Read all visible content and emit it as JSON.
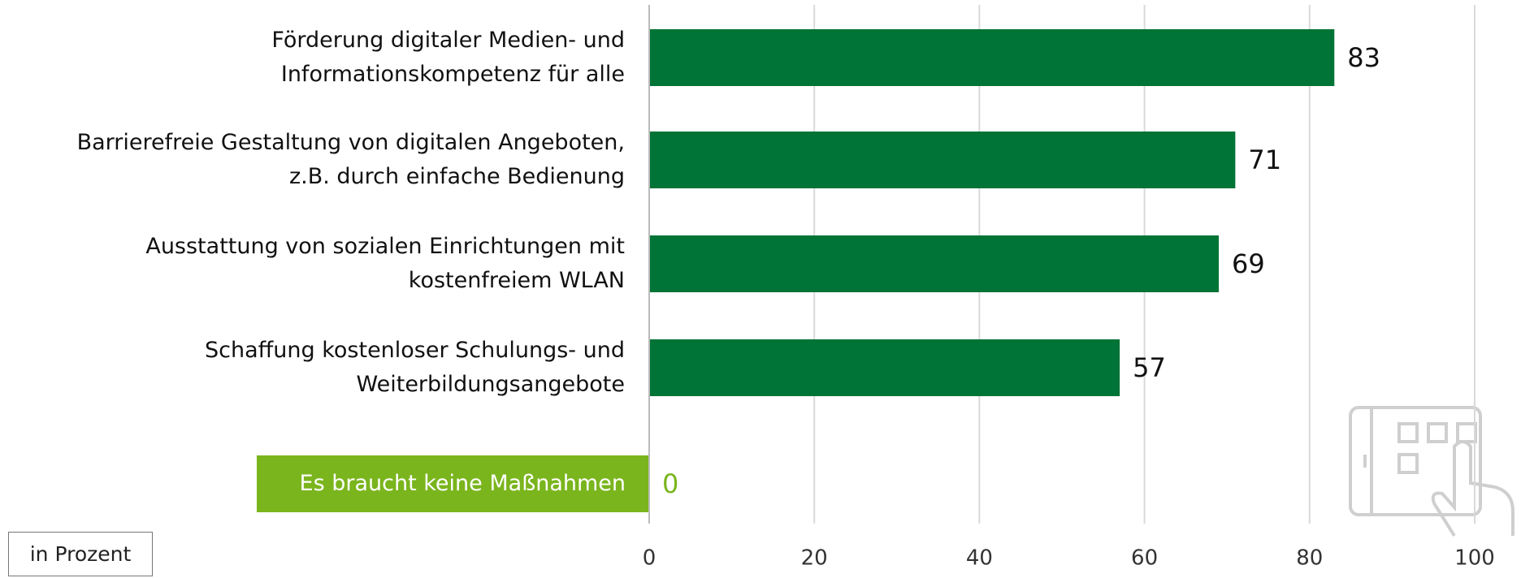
{
  "chart_data": {
    "type": "barh",
    "categories": [
      "Förderung digitaler Medien- und\nInformationskompetenz für alle",
      "Barrierefreie Gestaltung von digitalen Angeboten,\nz.B. durch einfache Bedienung",
      "Ausstattung von sozialen Einrichtungen mit\nkostenfreiem WLAN",
      "Schaffung kostenloser Schulungs- und\nWeiterbildungsangebote",
      "Es braucht keine Maßnahmen"
    ],
    "values": [
      83,
      71,
      69,
      57,
      0
    ],
    "color": "#007336",
    "highlight": {
      "category": 4,
      "color": "#7ab51d"
    },
    "xlim": [
      0,
      100
    ],
    "xticks": [
      0,
      20,
      40,
      60,
      80,
      100
    ],
    "grid": true,
    "annotation": "in Prozent"
  }
}
